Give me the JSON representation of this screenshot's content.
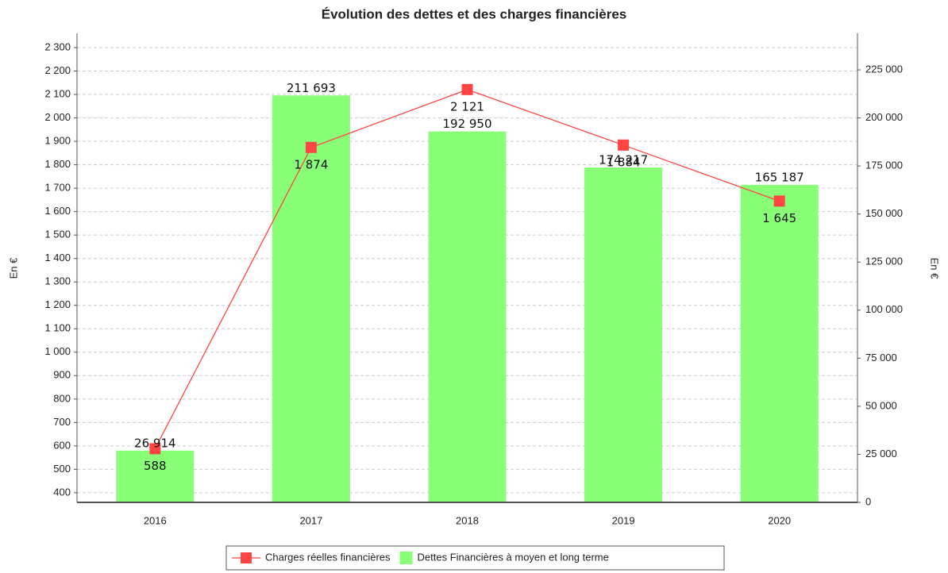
{
  "chart_data": {
    "type": "bar",
    "title": "Évolution des dettes et des charges financières",
    "categories": [
      "2016",
      "2017",
      "2018",
      "2019",
      "2020"
    ],
    "series": [
      {
        "name": "Charges réelles financières",
        "type": "line",
        "color": "#ff4444",
        "values": [
          588,
          1874,
          2121,
          1884,
          1645
        ],
        "value_labels": [
          "588",
          "1 874",
          "2 121",
          "1 884",
          "1 645"
        ]
      },
      {
        "name": "Dettes Financières à moyen et long terme",
        "type": "bar",
        "axis": "y2",
        "color": "#88ff77",
        "values": [
          26914,
          211693,
          192950,
          174217,
          165187
        ],
        "value_labels": [
          "26 914",
          "211 693",
          "192 950",
          "174 217",
          "165 187"
        ]
      }
    ],
    "ylabel": "En €",
    "y2label": "En €",
    "ylim": [
      359,
      2361
    ],
    "yticks": [
      400,
      500,
      600,
      700,
      800,
      900,
      {
        "value": 1000,
        "label": "1 000"
      },
      {
        "value": 1100,
        "label": "1 100"
      },
      {
        "value": 1200,
        "label": "1 200"
      },
      {
        "value": 1300,
        "label": "1 300"
      },
      {
        "value": 1400,
        "label": "1 400"
      },
      {
        "value": 1500,
        "label": "1 500"
      },
      {
        "value": 1600,
        "label": "1 600"
      },
      {
        "value": 1700,
        "label": "1 700"
      },
      {
        "value": 1800,
        "label": "1 800"
      },
      {
        "value": 1900,
        "label": "1 900"
      },
      {
        "value": 2000,
        "label": "2 000"
      },
      {
        "value": 2100,
        "label": "2 100"
      },
      {
        "value": 2200,
        "label": "2 200"
      },
      {
        "value": 2300,
        "label": "2 300"
      }
    ],
    "y2lim": [
      0,
      244000
    ],
    "y2ticks": [
      0,
      {
        "value": 25000,
        "label": "25 000"
      },
      {
        "value": 50000,
        "label": "50 000"
      },
      {
        "value": 75000,
        "label": "75 000"
      },
      {
        "value": 100000,
        "label": "100 000"
      },
      {
        "value": 125000,
        "label": "125 000"
      },
      {
        "value": 150000,
        "label": "150 000"
      },
      {
        "value": 175000,
        "label": "175 000"
      },
      {
        "value": 200000,
        "label": "200 000"
      },
      {
        "value": 225000,
        "label": "225 000"
      }
    ],
    "grid": true,
    "legend": "bottom"
  }
}
